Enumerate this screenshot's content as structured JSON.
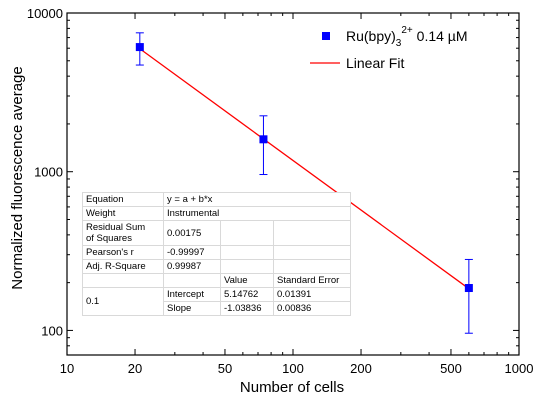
{
  "chart_data": {
    "type": "scatter",
    "xlabel": "Number of cells",
    "ylabel": "Normalized fluorescence average",
    "xscale": "log",
    "yscale": "log",
    "xlim": [
      10,
      1000
    ],
    "ylim": [
      70,
      10000
    ],
    "x_ticks": [
      "10",
      "20",
      "50",
      "100",
      "200",
      "500",
      "1000"
    ],
    "x_tick_values": [
      10,
      20,
      50,
      100,
      200,
      500,
      1000
    ],
    "y_ticks": [
      "100",
      "1000",
      "10000"
    ],
    "y_tick_values": [
      100,
      1000,
      10000
    ],
    "grid": false,
    "legend_position": "top-right",
    "series": [
      {
        "name": "Ru(bpy)3 2+ 0.14 µM",
        "marker": "square",
        "color": "#0000ff",
        "points": [
          {
            "x": 21,
            "y": 6100,
            "y_low": 4700,
            "y_high": 7500
          },
          {
            "x": 74,
            "y": 1600,
            "y_low": 960,
            "y_high": 2250
          },
          {
            "x": 600,
            "y": 185,
            "y_low": 96,
            "y_high": 280
          }
        ]
      },
      {
        "name": "Linear Fit",
        "type": "line",
        "color": "#ff0000",
        "x_range": [
          21,
          600
        ],
        "intercept": 5.14762,
        "slope": -1.03836
      }
    ]
  },
  "legend": {
    "series_main": "Ru(bpy)",
    "sub": "3",
    "sup": "2+",
    "suffix": " 0.14 µM",
    "fit": "Linear Fit"
  },
  "fit_table": {
    "equation_label": "Equation",
    "equation_value": "y = a + b*x",
    "weight_label": "Weight",
    "weight_value": "Instrumental",
    "rss_label_1": "Residual Sum",
    "rss_label_2": "of Squares",
    "rss_value": "0.00175",
    "pearson_label": "Pearson's r",
    "pearson_value": "-0.99997",
    "adjr_label": "Adj. R-Square",
    "adjr_value": "0.99987",
    "col_value": "Value",
    "col_stderr": "Standard Error",
    "row_group": "0.1",
    "intercept_label": "Intercept",
    "intercept_value": "5.14762",
    "intercept_err": "0.01391",
    "slope_label": "Slope",
    "slope_value": "-1.03836",
    "slope_err": "0.00836"
  }
}
